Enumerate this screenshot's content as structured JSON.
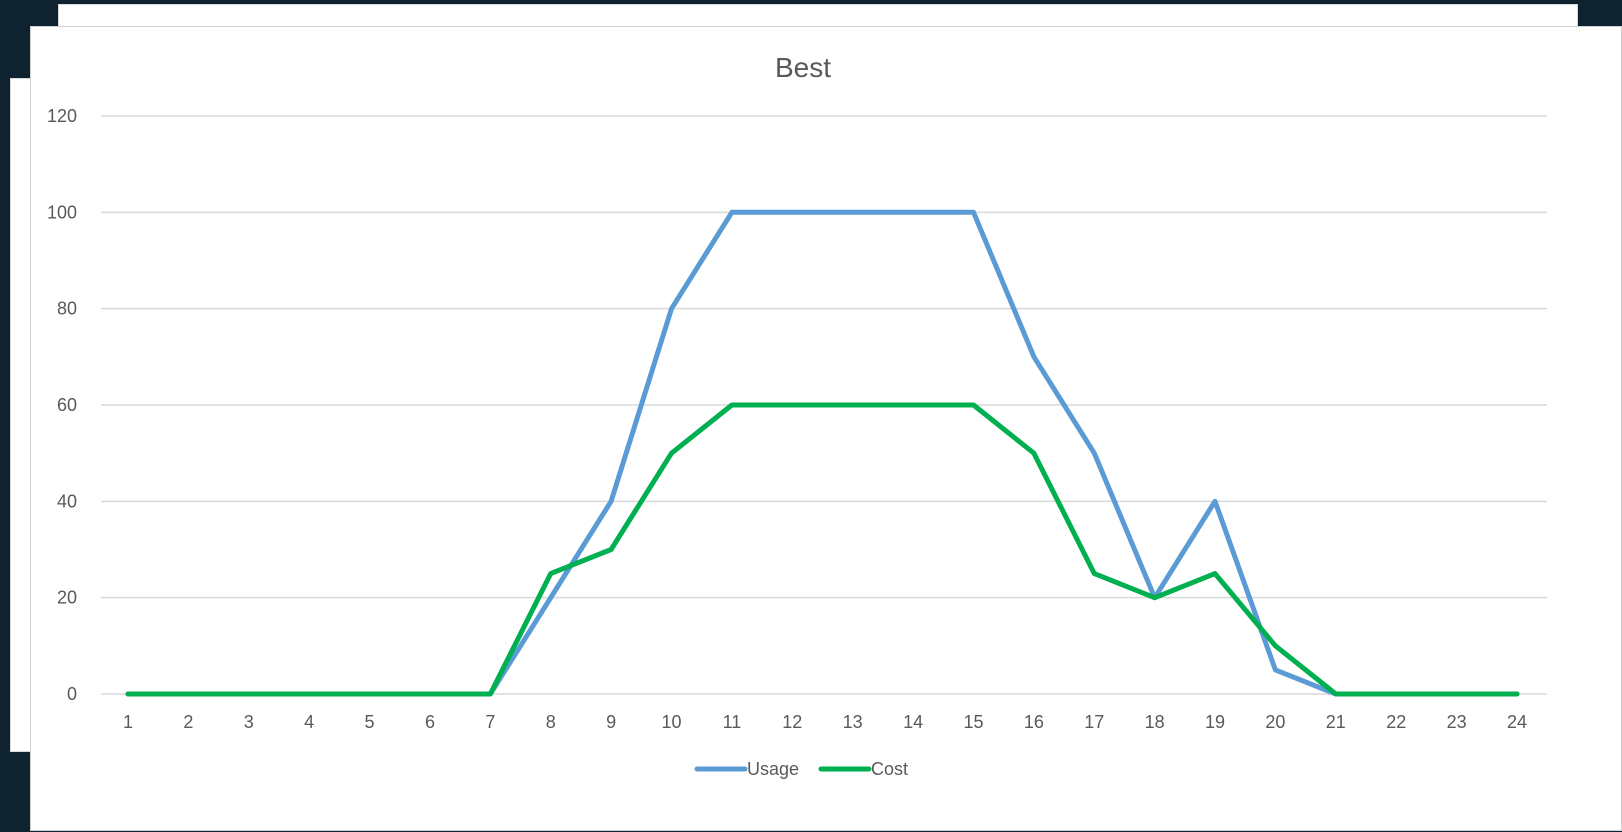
{
  "chart_data": {
    "type": "line",
    "title": "Best",
    "xlabel": "",
    "ylabel": "",
    "categories": [
      "1",
      "2",
      "3",
      "4",
      "5",
      "6",
      "7",
      "8",
      "9",
      "10",
      "11",
      "12",
      "13",
      "14",
      "15",
      "16",
      "17",
      "18",
      "19",
      "20",
      "21",
      "22",
      "23",
      "24"
    ],
    "ylim": [
      0,
      120
    ],
    "yticks": [
      0,
      20,
      40,
      60,
      80,
      100,
      120
    ],
    "grid": "horizontal",
    "legend_position": "bottom",
    "series": [
      {
        "name": "Usage",
        "color": "#5b9bd5",
        "values": [
          0,
          0,
          0,
          0,
          0,
          0,
          0,
          20,
          40,
          80,
          100,
          100,
          100,
          100,
          100,
          70,
          50,
          20,
          40,
          5,
          0,
          0,
          0,
          0
        ]
      },
      {
        "name": "Cost",
        "color": "#00b050",
        "values": [
          0,
          0,
          0,
          0,
          0,
          0,
          0,
          25,
          30,
          50,
          60,
          60,
          60,
          60,
          60,
          50,
          25,
          20,
          25,
          10,
          0,
          0,
          0,
          0
        ]
      }
    ]
  }
}
